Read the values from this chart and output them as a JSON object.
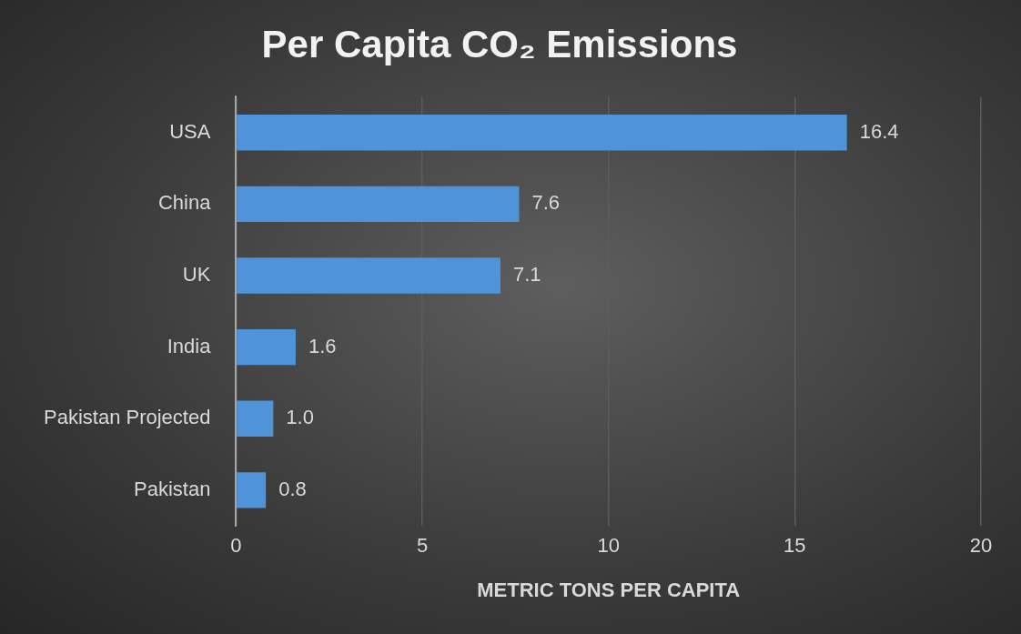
{
  "chart_data": {
    "type": "bar",
    "orientation": "horizontal",
    "title": "Per Capita CO₂ Emissions",
    "xlabel": "METRIC TONS PER CAPITA",
    "categories": [
      "USA",
      "China",
      "UK",
      "India",
      "Pakistan Projected",
      "Pakistan"
    ],
    "values": [
      16.4,
      7.6,
      7.1,
      1.6,
      1.0,
      0.8
    ],
    "value_labels": [
      "16.4",
      "7.6",
      "7.1",
      "1.6",
      "1.0",
      "0.8"
    ],
    "color": "#4f93d8",
    "xlim": [
      0,
      20
    ],
    "xticks": [
      0,
      5,
      10,
      15,
      20
    ],
    "grid": "x",
    "legend": false
  }
}
